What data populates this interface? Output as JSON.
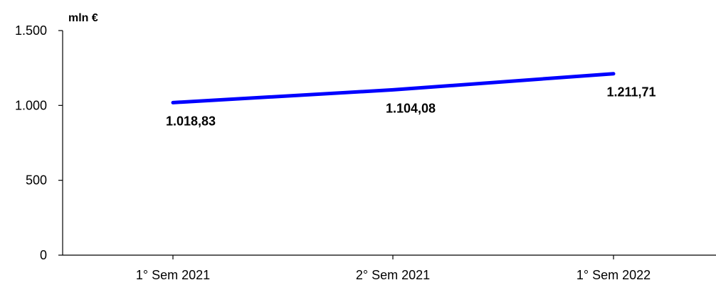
{
  "chart_data": {
    "type": "line",
    "categories": [
      "1° Sem 2021",
      "2° Sem 2021",
      "1° Sem 2022"
    ],
    "values": [
      1018.83,
      1104.08,
      1211.71
    ],
    "data_labels": [
      "1.018,83",
      "1.104,08",
      "1.211,71"
    ],
    "unit_label": "mln €",
    "ylim": [
      0,
      1500
    ],
    "y_ticks": [
      0,
      500,
      1000,
      1500
    ],
    "y_tick_labels": [
      "0",
      "500",
      "1.000",
      "1.500"
    ],
    "series_color": "#0000ff",
    "grid": false,
    "legend": "none"
  }
}
